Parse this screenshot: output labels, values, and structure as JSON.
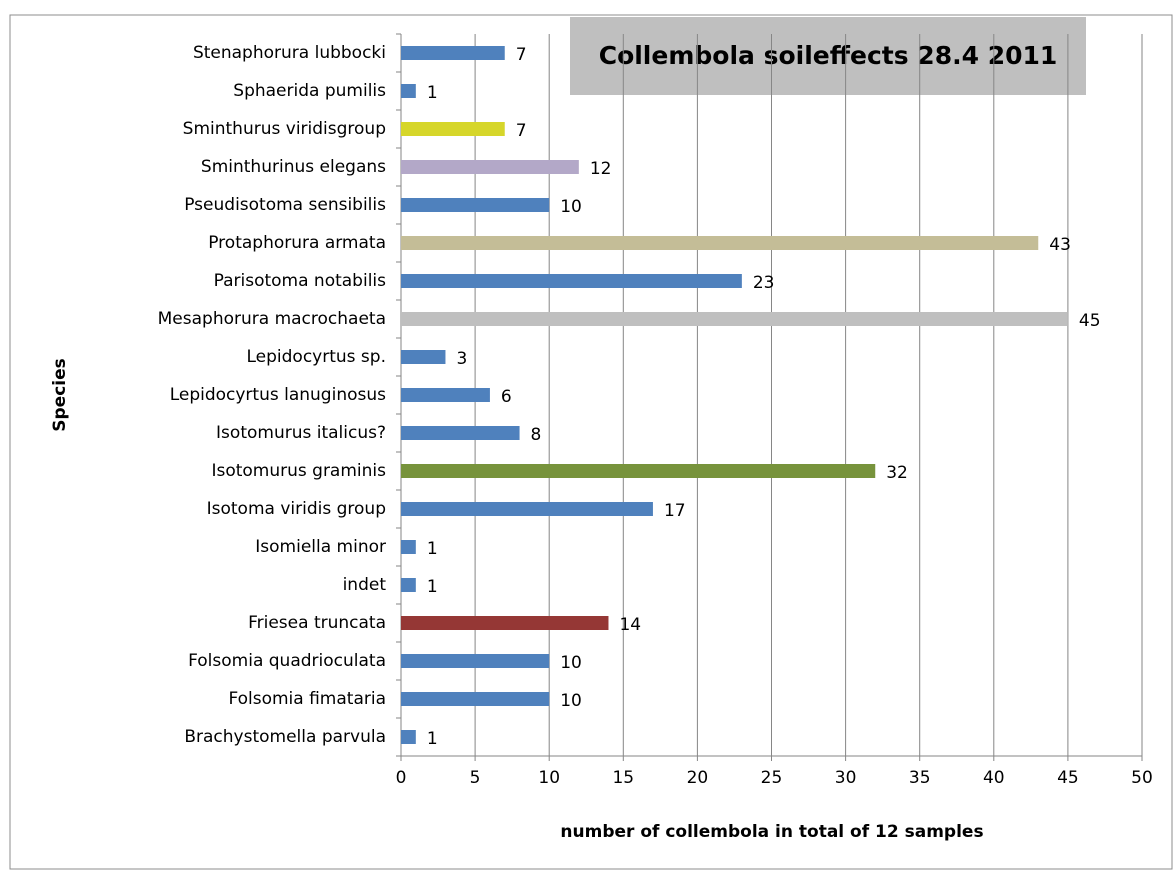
{
  "chart_data": {
    "type": "bar",
    "orientation": "horizontal",
    "title": "Collembola soileffects 28.4 2011",
    "x_label": "number of collembola in total of 12 samples",
    "y_label": "Species",
    "categories": [
      "Stenaphorura lubbocki",
      "Sphaerida pumilis",
      "Sminthurus viridisgroup",
      "Sminthurinus elegans",
      "Pseudisotoma sensibilis",
      "Protaphorura armata",
      "Parisotoma notabilis",
      "Mesaphorura macrochaeta",
      "Lepidocyrtus sp.",
      "Lepidocyrtus lanuginosus",
      "Isotomurus italicus?",
      "Isotomurus graminis",
      "Isotoma viridis group ",
      "Isomiella minor",
      "indet",
      "Friesea truncata",
      "Folsomia quadrioculata",
      "Folsomia fimataria",
      "Brachystomella parvula"
    ],
    "values": [
      7,
      1,
      7,
      12,
      10,
      43,
      23,
      45,
      3,
      6,
      8,
      32,
      17,
      1,
      1,
      14,
      10,
      10,
      1
    ],
    "colors": [
      "#4f81bd",
      "#4f81bd",
      "#d6d62a",
      "#b3a8c8",
      "#4f81bd",
      "#c4bd97",
      "#4f81bd",
      "#bfbfbf",
      "#4f81bd",
      "#4f81bd",
      "#4f81bd",
      "#77933c",
      "#4f81bd",
      "#4f81bd",
      "#4f81bd",
      "#953735",
      "#4f81bd",
      "#4f81bd",
      "#4f81bd"
    ],
    "xlim": [
      0,
      50
    ],
    "xticks": [
      0,
      5,
      10,
      15,
      20,
      25,
      30,
      35,
      40,
      45,
      50
    ],
    "grid": true
  }
}
